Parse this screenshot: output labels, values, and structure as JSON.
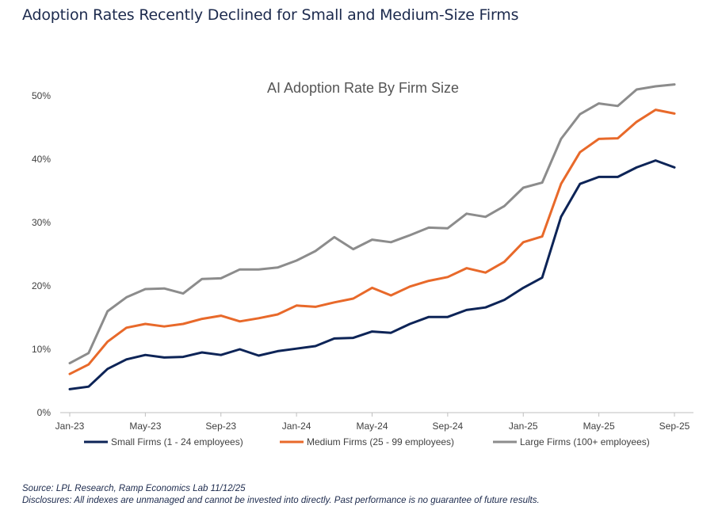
{
  "page": {
    "headline": "Adoption Rates Recently Declined for Small and Medium-Size Firms",
    "source": "Source: LPL Research, Ramp Economics Lab 11/12/25",
    "disclosure": "Disclosures: All indexes are unmanaged and cannot be invested into directly. Past performance is no guarantee of future results."
  },
  "chart_data": {
    "type": "line",
    "title": "AI Adoption Rate By Firm Size",
    "xlabel": "",
    "ylabel": "",
    "ylim": [
      0,
      50
    ],
    "yticks": [
      0,
      10,
      20,
      30,
      40,
      50
    ],
    "ytick_labels": [
      "0%",
      "10%",
      "20%",
      "30%",
      "40%",
      "50%"
    ],
    "x": [
      "Jan-23",
      "Feb-23",
      "Mar-23",
      "Apr-23",
      "May-23",
      "Jun-23",
      "Jul-23",
      "Aug-23",
      "Sep-23",
      "Oct-23",
      "Nov-23",
      "Dec-23",
      "Jan-24",
      "Feb-24",
      "Mar-24",
      "Apr-24",
      "May-24",
      "Jun-24",
      "Jul-24",
      "Aug-24",
      "Sep-24",
      "Oct-24",
      "Nov-24",
      "Dec-24",
      "Jan-25",
      "Feb-25",
      "Mar-25",
      "Apr-25",
      "May-25",
      "Jun-25",
      "Jul-25",
      "Aug-25",
      "Sep-25"
    ],
    "xtick_labels": [
      "Jan-23",
      "May-23",
      "Sep-23",
      "Jan-24",
      "May-24",
      "Sep-24",
      "Jan-25",
      "May-25",
      "Sep-25"
    ],
    "grid": false,
    "legend_position": "bottom",
    "series": [
      {
        "name": "Small Firms (1 - 24 employees)",
        "color": "#0d2457",
        "values": [
          3.7,
          4.1,
          6.9,
          8.4,
          9.1,
          8.7,
          8.8,
          9.5,
          9.1,
          10.0,
          9.0,
          9.7,
          10.1,
          10.5,
          11.7,
          11.8,
          12.8,
          12.6,
          14.0,
          15.1,
          15.1,
          16.2,
          16.6,
          17.8,
          19.7,
          21.3,
          30.9,
          36.1,
          37.2,
          37.2,
          38.7,
          39.8,
          38.7
        ]
      },
      {
        "name": "Medium Firms (25 - 99 employees)",
        "color": "#e8692a",
        "values": [
          6.1,
          7.6,
          11.2,
          13.4,
          14.0,
          13.6,
          14.0,
          14.8,
          15.3,
          14.4,
          14.9,
          15.5,
          16.9,
          16.7,
          17.4,
          18.0,
          19.7,
          18.5,
          19.9,
          20.8,
          21.4,
          22.8,
          22.1,
          23.8,
          26.9,
          27.8,
          36.1,
          41.1,
          43.2,
          43.3,
          45.9,
          47.8,
          47.2
        ]
      },
      {
        "name": "Large Firms (100+ employees)",
        "color": "#8c8c8c",
        "values": [
          7.8,
          9.4,
          16.0,
          18.2,
          19.5,
          19.6,
          18.8,
          21.1,
          21.2,
          22.6,
          22.6,
          22.9,
          24.0,
          25.5,
          27.7,
          25.8,
          27.3,
          26.9,
          28.0,
          29.2,
          29.1,
          31.4,
          30.9,
          32.6,
          35.5,
          36.3,
          43.2,
          47.1,
          48.8,
          48.4,
          51.0,
          51.5,
          51.8
        ]
      }
    ]
  }
}
